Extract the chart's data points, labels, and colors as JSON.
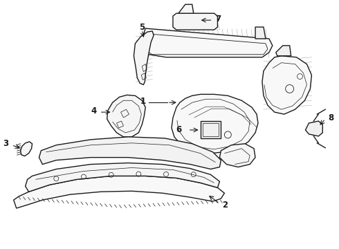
{
  "background_color": "#ffffff",
  "line_color": "#1a1a1a",
  "line_width": 1.0,
  "label_fontsize": 8.5,
  "fig_width": 4.9,
  "fig_height": 3.6,
  "dpi": 100
}
